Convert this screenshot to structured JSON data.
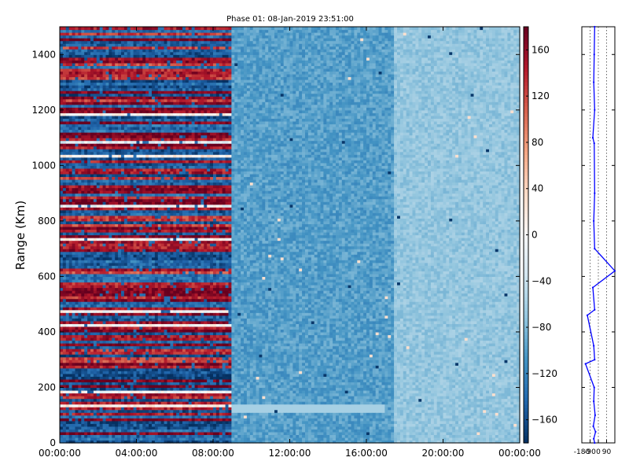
{
  "chart_data": [
    {
      "type": "heatmap",
      "title": "Phase 01: 08-Jan-2019 23:51:00",
      "ylabel": "Range (Km)",
      "xlabel": "",
      "x_tick_labels": [
        "00:00:00",
        "04:00:00",
        "08:00:00",
        "12:00:00",
        "16:00:00",
        "20:00:00",
        "00:00:00"
      ],
      "x_range_hours": [
        0,
        24
      ],
      "y_ticks": [
        0,
        200,
        400,
        600,
        800,
        1000,
        1200,
        1400
      ],
      "ylim": [
        0,
        1500
      ],
      "colormap": "RdBu_r",
      "colorbar_ticks": [
        160,
        120,
        80,
        40,
        0,
        -40,
        -80,
        -120,
        -160
      ],
      "colorbar_range": [
        -180,
        180
      ],
      "regions": [
        {
          "x_start_hours": 0,
          "x_end_hours": 9,
          "description_values": "alternating bands between about -170 and 180"
        },
        {
          "x_start_hours": 9,
          "x_end_hours": 17.5,
          "typical_value": -100
        },
        {
          "x_start_hours": 17.5,
          "x_end_hours": 24,
          "typical_value": -70
        }
      ],
      "features": [
        {
          "x_start_hours": 9,
          "x_end_hours": 17,
          "range_km": 125,
          "value": -60
        }
      ]
    },
    {
      "type": "line",
      "x_tick_labels": [
        "-180",
        "-90",
        "0",
        "90"
      ],
      "xlim": [
        -180,
        180
      ],
      "ylim": [
        0,
        1500
      ],
      "series": [
        {
          "color": "#0000ff",
          "x": [
            -40,
            -50,
            -30,
            -55,
            -35,
            -50,
            -45,
            -140,
            -40,
            -50,
            -120,
            -40,
            -60,
            180,
            -40,
            -50,
            -40,
            -45,
            -60,
            -40,
            -50,
            -45,
            -40
          ],
          "y": [
            0,
            15,
            40,
            60,
            100,
            150,
            200,
            285,
            300,
            350,
            460,
            480,
            560,
            620,
            700,
            800,
            900,
            1080,
            1100,
            1200,
            1300,
            1400,
            1500
          ]
        }
      ]
    }
  ]
}
